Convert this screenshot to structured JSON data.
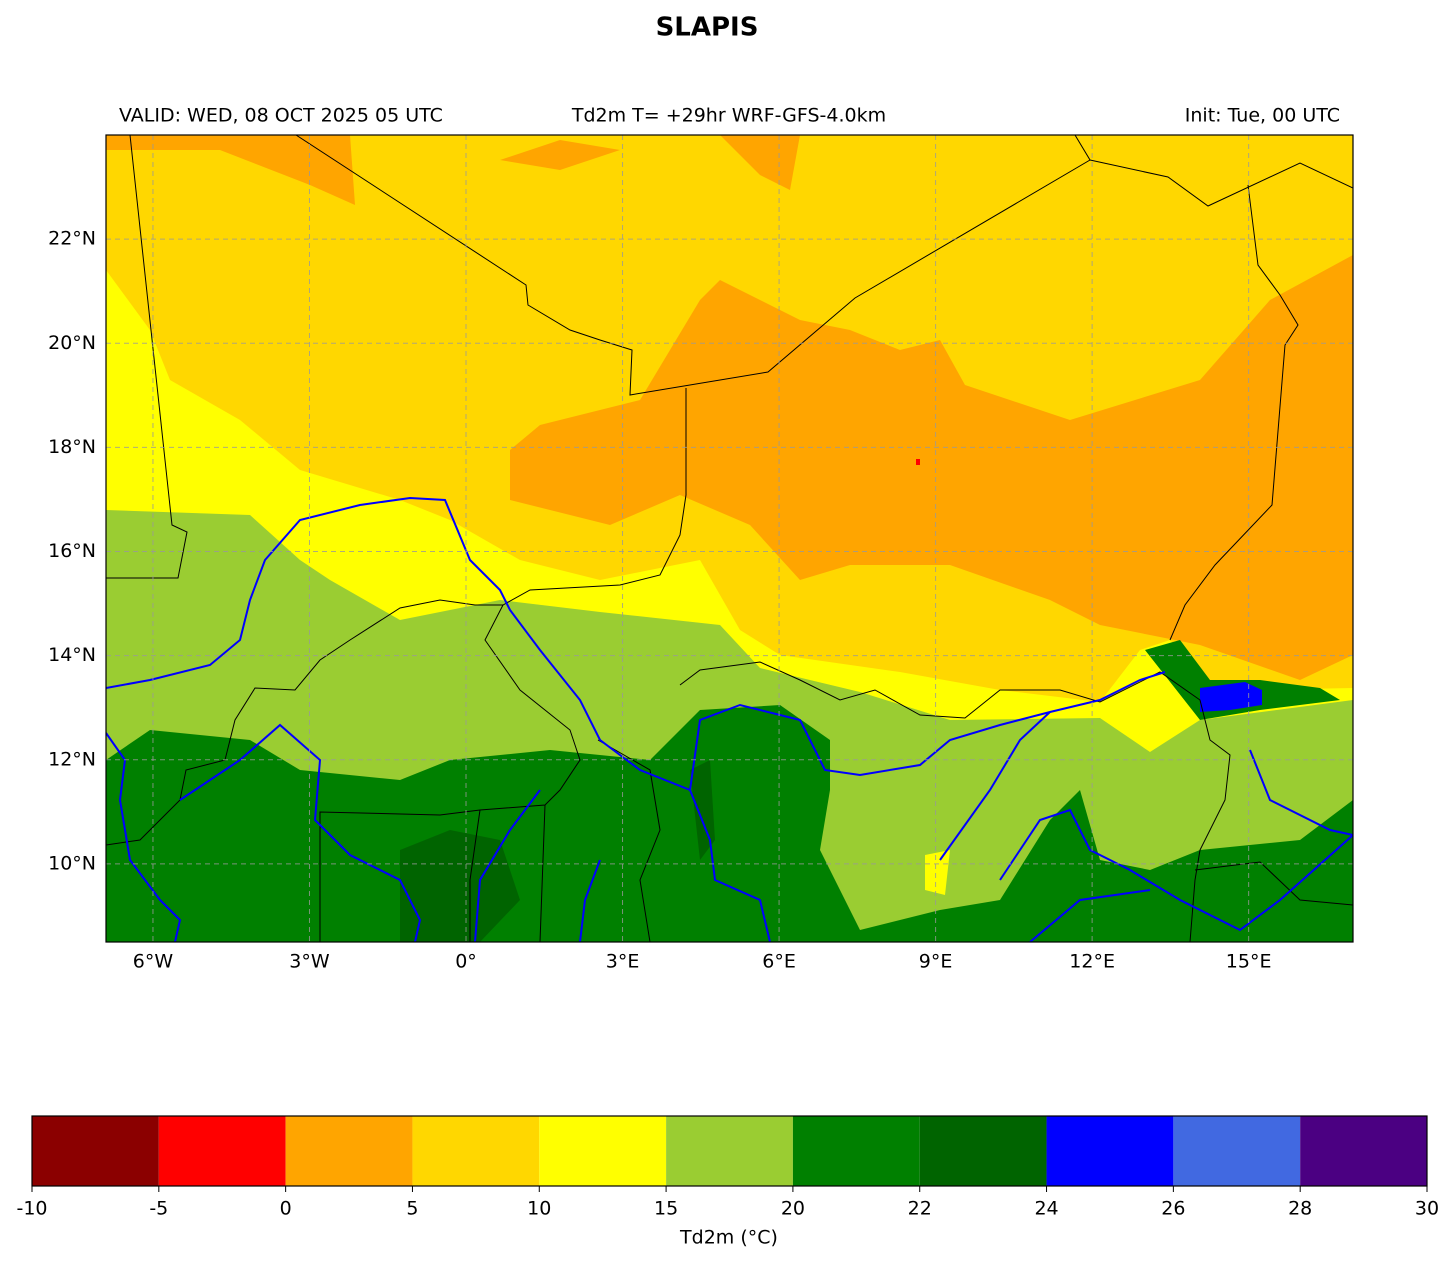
{
  "title": "SLAPIS",
  "header": {
    "valid": "VALID: WED, 08 OCT 2025 05 UTC",
    "field": "Td2m T= +29hr WRF-GFS-4.0km",
    "init": "Init: Tue, 00 UTC"
  },
  "map": {
    "xlim": [
      -6.9,
      17.0
    ],
    "ylim": [
      8.5,
      24
    ],
    "xticks": [
      {
        "value": -6,
        "label": "6°W"
      },
      {
        "value": -3,
        "label": "3°W"
      },
      {
        "value": 0,
        "label": "0°"
      },
      {
        "value": 3,
        "label": "3°E"
      },
      {
        "value": 6,
        "label": "6°E"
      },
      {
        "value": 9,
        "label": "9°E"
      },
      {
        "value": 12,
        "label": "12°E"
      },
      {
        "value": 15,
        "label": "15°E"
      }
    ],
    "yticks": [
      {
        "value": 10,
        "label": "10°N"
      },
      {
        "value": 12,
        "label": "12°N"
      },
      {
        "value": 14,
        "label": "14°N"
      },
      {
        "value": 16,
        "label": "16°N"
      },
      {
        "value": 18,
        "label": "18°N"
      },
      {
        "value": 20,
        "label": "20°N"
      },
      {
        "value": 22,
        "label": "22°N"
      }
    ],
    "grid": true
  },
  "colorbar": {
    "levels": [
      -10,
      -5,
      0,
      5,
      10,
      15,
      20,
      22,
      24,
      26,
      28,
      30
    ],
    "colors": [
      "#8b0000",
      "#ff0000",
      "#ffa500",
      "#ffd700",
      "#ffff00",
      "#9acd32",
      "#008000",
      "#006400",
      "#0000ff",
      "#4169e1",
      "#4b0082"
    ],
    "label": "Td2m (°C)"
  }
}
